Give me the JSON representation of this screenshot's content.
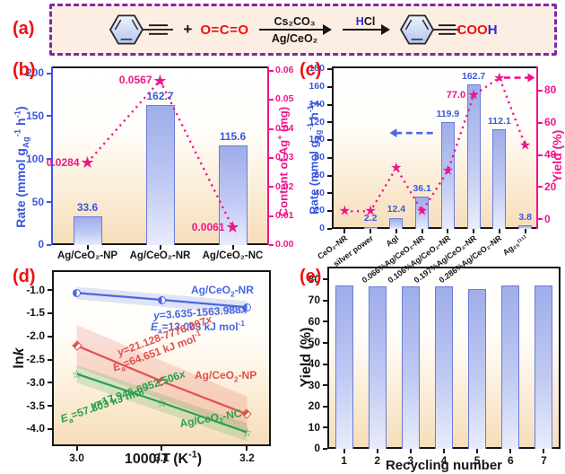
{
  "colors": {
    "accent_red": "#ee1111",
    "blue": "#3b57dd",
    "pink": "#f0148c",
    "line_blue": "#4a67e0",
    "line_red": "#e2504a",
    "line_green": "#2ba04c",
    "bar_border": "#6a7cd8",
    "panel_a_bg": "#fdeee4",
    "panel_a_border": "#7a2ba6",
    "plot_bg_bottom": "#f6ddba"
  },
  "glyphs": {
    "star": "★",
    "open_star": "☆"
  },
  "panels": {
    "a": "(a)",
    "b": "(b)",
    "c": "(c)",
    "d": "(d)",
    "e": "(e)"
  },
  "panel_a": {
    "plus": "+",
    "co2": "O=C=O",
    "arrow1_above": "Cs₂CO₃",
    "arrow1_below": "Ag/CeO₂",
    "arrow2_above": [
      {
        "t": "H",
        "c": "#2a2ae0"
      },
      {
        "t": "Cl",
        "c": "#151515"
      }
    ],
    "product_group": [
      {
        "t": "COO",
        "c": "#ee1111"
      },
      {
        "t": "H",
        "c": "#2a2ae0"
      }
    ]
  },
  "chart_data": [
    {
      "id": "b",
      "type": "bar+scatter",
      "categories": [
        "Ag/CeO₂-NP",
        "Ag/CeO₂-NR",
        "Ag/CeO₂-NC"
      ],
      "bars": {
        "series_name": "Rate",
        "values": [
          33.6,
          162.7,
          115.6
        ],
        "labels": [
          "33.6",
          "162.7",
          "115.6"
        ]
      },
      "stars": {
        "series_name": "Content of Ag+",
        "values": [
          0.0284,
          0.0567,
          0.0061
        ],
        "labels": [
          "0.0284",
          "0.0567",
          "0.0061"
        ]
      },
      "left_axis": {
        "label": [
          {
            "t": "Rate (mmol g"
          },
          {
            "t": "Ag",
            "sub": true
          },
          {
            "t": "-1",
            "sup": true
          },
          {
            "t": " h"
          },
          {
            "t": "-1",
            "sup": true
          },
          {
            "t": ")"
          }
        ],
        "min": 0,
        "max": 208,
        "tick_values": [
          0,
          50,
          100,
          150,
          200
        ],
        "tick_labels": [
          "0",
          "50",
          "100",
          "150",
          "200"
        ],
        "color": "#3b57dd",
        "spine": "#3b57dd"
      },
      "right_axis": {
        "label": [
          {
            "t": "Content of Ag"
          },
          {
            "t": "+",
            "sup": true
          },
          {
            "t": " (mg)"
          }
        ],
        "min": 0,
        "max": 0.0615,
        "tick_values": [
          0,
          0.01,
          0.02,
          0.03,
          0.04,
          0.05,
          0.06
        ],
        "tick_labels": [
          "0.00",
          "0.01",
          "0.02",
          "0.03",
          "0.04",
          "0.05",
          "0.06"
        ],
        "color": "#f0148c",
        "spine": "#f0148c"
      }
    },
    {
      "id": "c",
      "type": "bar+scatter",
      "categories": [
        "CeO₂-NR",
        "silver power",
        "AgI",
        "0.066%Ag/CeO₂-NR",
        "0.106%Ag/CeO₂-NR",
        "0.197%Ag/CeO₂-NR",
        "0.286%Ag/CeO₂-NR",
        "Ag₂₅⁽¹¹⁾"
      ],
      "bars": {
        "series_name": "Rate",
        "values": [
          0,
          2.2,
          12.4,
          36.1,
          119.9,
          162.7,
          112.1,
          3.8
        ],
        "labels": [
          null,
          "2.2",
          "12.4",
          "36.1",
          "119.9",
          "162.7",
          "112.1",
          "3.8"
        ]
      },
      "stars": {
        "series_name": "Yield",
        "values": [
          5,
          5,
          32,
          5,
          30,
          77,
          88,
          46
        ],
        "labels": [
          null,
          null,
          null,
          null,
          null,
          "77.0",
          null,
          null
        ]
      },
      "left_axis": {
        "label": [
          {
            "t": "Rate (mmol g"
          },
          {
            "t": "Ag",
            "sub": true
          },
          {
            "t": "-1",
            "sup": true
          },
          {
            "t": " h"
          },
          {
            "t": "-1",
            "sup": true
          },
          {
            "t": ")"
          }
        ],
        "min": 0,
        "max": 183,
        "tick_values": [
          0,
          20,
          40,
          60,
          80,
          100,
          120,
          140,
          160,
          180
        ],
        "tick_labels": [
          "0",
          "20",
          "40",
          "60",
          "80",
          "100",
          "120",
          "140",
          "160",
          "180"
        ],
        "color": "#3b57dd",
        "tick": "#151515"
      },
      "right_axis": {
        "label": "Yield (%)",
        "min": -6,
        "max": 95,
        "tick_values": [
          0,
          20,
          40,
          60,
          80
        ],
        "tick_labels": [
          "0",
          "20",
          "40",
          "60",
          "80"
        ],
        "color": "#f0148c",
        "spine": "#f0148c"
      },
      "axis_arrows": [
        {
          "axis": "left",
          "y": 108,
          "from": 0.49,
          "to": 0.315,
          "color": "#4a67e0"
        },
        {
          "axis": "right",
          "y": 88,
          "from": 0.835,
          "to": 0.95,
          "color": "#f0148c"
        }
      ]
    },
    {
      "id": "d",
      "type": "line",
      "x": [
        3.0,
        3.1,
        3.2
      ],
      "xlim": [
        2.971,
        3.228
      ],
      "ylim": [
        -4.37,
        -0.57
      ],
      "xtick_values": [
        3.0,
        3.1,
        3.2
      ],
      "xtick_labels": [
        "3.0",
        "3.1",
        "3.2"
      ],
      "ytick_values": [
        -1.0,
        -1.5,
        -2.0,
        -2.5,
        -3.0,
        -3.5,
        -4.0
      ],
      "ytick_labels": [
        "-1.0",
        "-1.5",
        "-2.0",
        "-2.5",
        "-3.0",
        "-3.5",
        "-4.0"
      ],
      "xlabel": [
        {
          "t": "1000/"
        },
        {
          "t": "T",
          "i": true
        },
        {
          "t": " (K"
        },
        {
          "t": "-1",
          "sup": true
        },
        {
          "t": ")"
        }
      ],
      "ylabel": [
        {
          "t": "ln"
        },
        {
          "t": "k",
          "i": true
        }
      ],
      "series": [
        {
          "name": [
            {
              "t": "Ag/CeO"
            },
            {
              "t": "2",
              "sub": true
            },
            {
              "t": "-NR"
            }
          ],
          "color": "#4a67e0",
          "marker": "circle",
          "values": [
            -1.06,
            -1.21,
            -1.37
          ],
          "band_upper": [
            -0.93,
            -1.24
          ],
          "band_lower": [
            -1.2,
            -1.52
          ],
          "eq": [
            {
              "t": "y",
              "i": true
            },
            {
              "t": "=3.635-1563.988"
            },
            {
              "t": "x",
              "i": true
            }
          ],
          "ea": [
            {
              "t": "E",
              "i": true
            },
            {
              "t": "a",
              "sub": true
            },
            {
              "t": "=13.003 kJ mol"
            },
            {
              "t": "-1",
              "sup": true
            }
          ]
        },
        {
          "name": [
            {
              "t": "Ag/CeO"
            },
            {
              "t": "2",
              "sub": true
            },
            {
              "t": "-NP"
            }
          ],
          "color": "#e2504a",
          "marker": "diamond",
          "values": [
            -2.2,
            -2.97,
            -3.68
          ],
          "band_upper": [
            -1.75,
            -3.3
          ],
          "band_lower": [
            -2.66,
            -4.06
          ],
          "eq": [
            {
              "t": "y",
              "i": true
            },
            {
              "t": "=21.128-7776.207"
            },
            {
              "t": "x",
              "i": true
            }
          ],
          "ea": [
            {
              "t": "E",
              "i": true
            },
            {
              "t": "a",
              "sub": true
            },
            {
              "t": "=64.651 kJ mol"
            },
            {
              "t": "-1",
              "sup": true
            }
          ]
        },
        {
          "name": [
            {
              "t": "Ag/CeO"
            },
            {
              "t": "2",
              "sub": true
            },
            {
              "t": "-NC"
            }
          ],
          "color": "#2ba04c",
          "marker": "star",
          "values": [
            -2.81,
            -3.43,
            -4.07
          ],
          "band_upper": [
            -2.62,
            -3.88
          ],
          "band_lower": [
            -3.0,
            -4.26
          ],
          "eq": [
            {
              "t": "y",
              "i": true
            },
            {
              "t": "=17.940-6952.506"
            },
            {
              "t": "x",
              "i": true
            }
          ],
          "ea": [
            {
              "t": "E",
              "i": true
            },
            {
              "t": "a",
              "sub": true
            },
            {
              "t": "=57.803 kJ mol"
            },
            {
              "t": "-1",
              "sup": true
            }
          ]
        }
      ]
    },
    {
      "id": "e",
      "type": "bar",
      "categories": [
        "1",
        "2",
        "3",
        "4",
        "5",
        "6",
        "7"
      ],
      "values": [
        77,
        76.6,
        76.6,
        76.8,
        75.5,
        77,
        77
      ],
      "xlabel": "Recycling number",
      "ylabel": "Yield (%)",
      "ylim": [
        0,
        86
      ],
      "ytick_values": [
        0,
        10,
        20,
        30,
        40,
        50,
        60,
        70,
        80
      ],
      "ytick_labels": [
        "0",
        "10",
        "20",
        "30",
        "40",
        "50",
        "60",
        "70",
        "80"
      ]
    }
  ]
}
